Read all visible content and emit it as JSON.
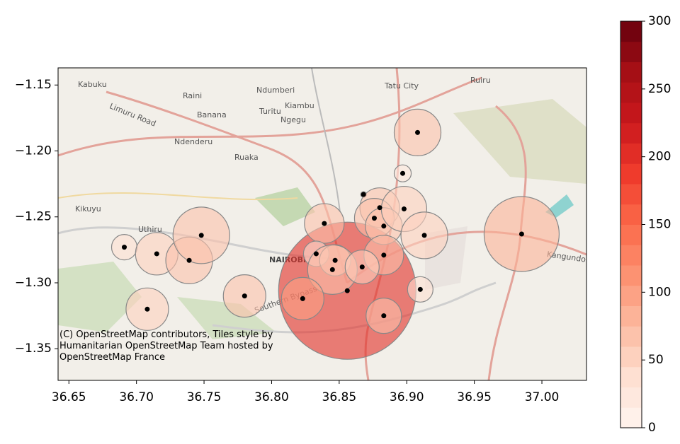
{
  "chart_data": {
    "type": "scatter",
    "attribution": "(C) OpenStreetMap contributors, Tiles style by Humanitarian OpenStreetMap Team hosted by OpenStreetMap France",
    "map_labels": [
      "Kabuku",
      "Raini",
      "Ndumberi",
      "Tatu City",
      "Ruiru",
      "Limuru Road",
      "Banana",
      "Turitu",
      "Kiambu",
      "Ngegu",
      "Ndenderu",
      "Ruaka",
      "Kikuyu",
      "Uthiru",
      "NAIROBI",
      "Kangundo",
      "Southern Bypass"
    ],
    "x": [
      36.856,
      36.908,
      36.897,
      36.868,
      36.88,
      36.876,
      36.883,
      36.898,
      36.913,
      36.839,
      36.883,
      36.833,
      36.847,
      36.845,
      36.867,
      36.823,
      36.883,
      36.91,
      36.985,
      36.691,
      36.715,
      36.739,
      36.748,
      36.78,
      36.708
    ],
    "y": [
      -1.306,
      -1.186,
      -1.217,
      -1.233,
      -1.243,
      -1.251,
      -1.257,
      -1.244,
      -1.264,
      -1.255,
      -1.279,
      -1.278,
      -1.283,
      -1.29,
      -1.288,
      -1.312,
      -1.325,
      -1.305,
      -1.263,
      -1.273,
      -1.278,
      -1.283,
      -1.264,
      -1.31,
      -1.32
    ],
    "values": [
      200,
      60,
      20,
      10,
      70,
      65,
      60,
      55,
      55,
      70,
      60,
      40,
      45,
      70,
      50,
      90,
      70,
      40,
      75,
      40,
      50,
      70,
      60,
      65,
      55
    ],
    "sizes": [
      97,
      33,
      12,
      4,
      28,
      28,
      26,
      32,
      33,
      28,
      28,
      18,
      22,
      35,
      24,
      30,
      25,
      18,
      53,
      18,
      30,
      33,
      40,
      30,
      30
    ],
    "point_color": "#000000",
    "colormap": [
      "#fff5f0",
      "#fee0d2",
      "#fcbba1",
      "#fc9272",
      "#fb6a4a",
      "#ef3b2c",
      "#cb181d",
      "#a50f15",
      "#67000d"
    ],
    "color_levels": 20,
    "clim": [
      0,
      300
    ],
    "cticks": [
      0,
      50,
      100,
      150,
      200,
      250,
      300
    ],
    "xlim": [
      36.642,
      37.033
    ],
    "ylim": [
      -1.374,
      -1.137
    ],
    "xticks": [
      {
        "value": 36.65,
        "label": "36.65"
      },
      {
        "value": 36.7,
        "label": "36.70"
      },
      {
        "value": 36.75,
        "label": "36.75"
      },
      {
        "value": 36.8,
        "label": "36.80"
      },
      {
        "value": 36.85,
        "label": "36.85"
      },
      {
        "value": 36.9,
        "label": "36.90"
      },
      {
        "value": 36.95,
        "label": "36.95"
      },
      {
        "value": 37.0,
        "label": "37.00"
      }
    ],
    "yticks": [
      {
        "value": -1.15,
        "label": "−1.15"
      },
      {
        "value": -1.2,
        "label": "−1.20"
      },
      {
        "value": -1.25,
        "label": "−1.25"
      },
      {
        "value": -1.3,
        "label": "−1.30"
      },
      {
        "value": -1.35,
        "label": "−1.35"
      }
    ]
  }
}
